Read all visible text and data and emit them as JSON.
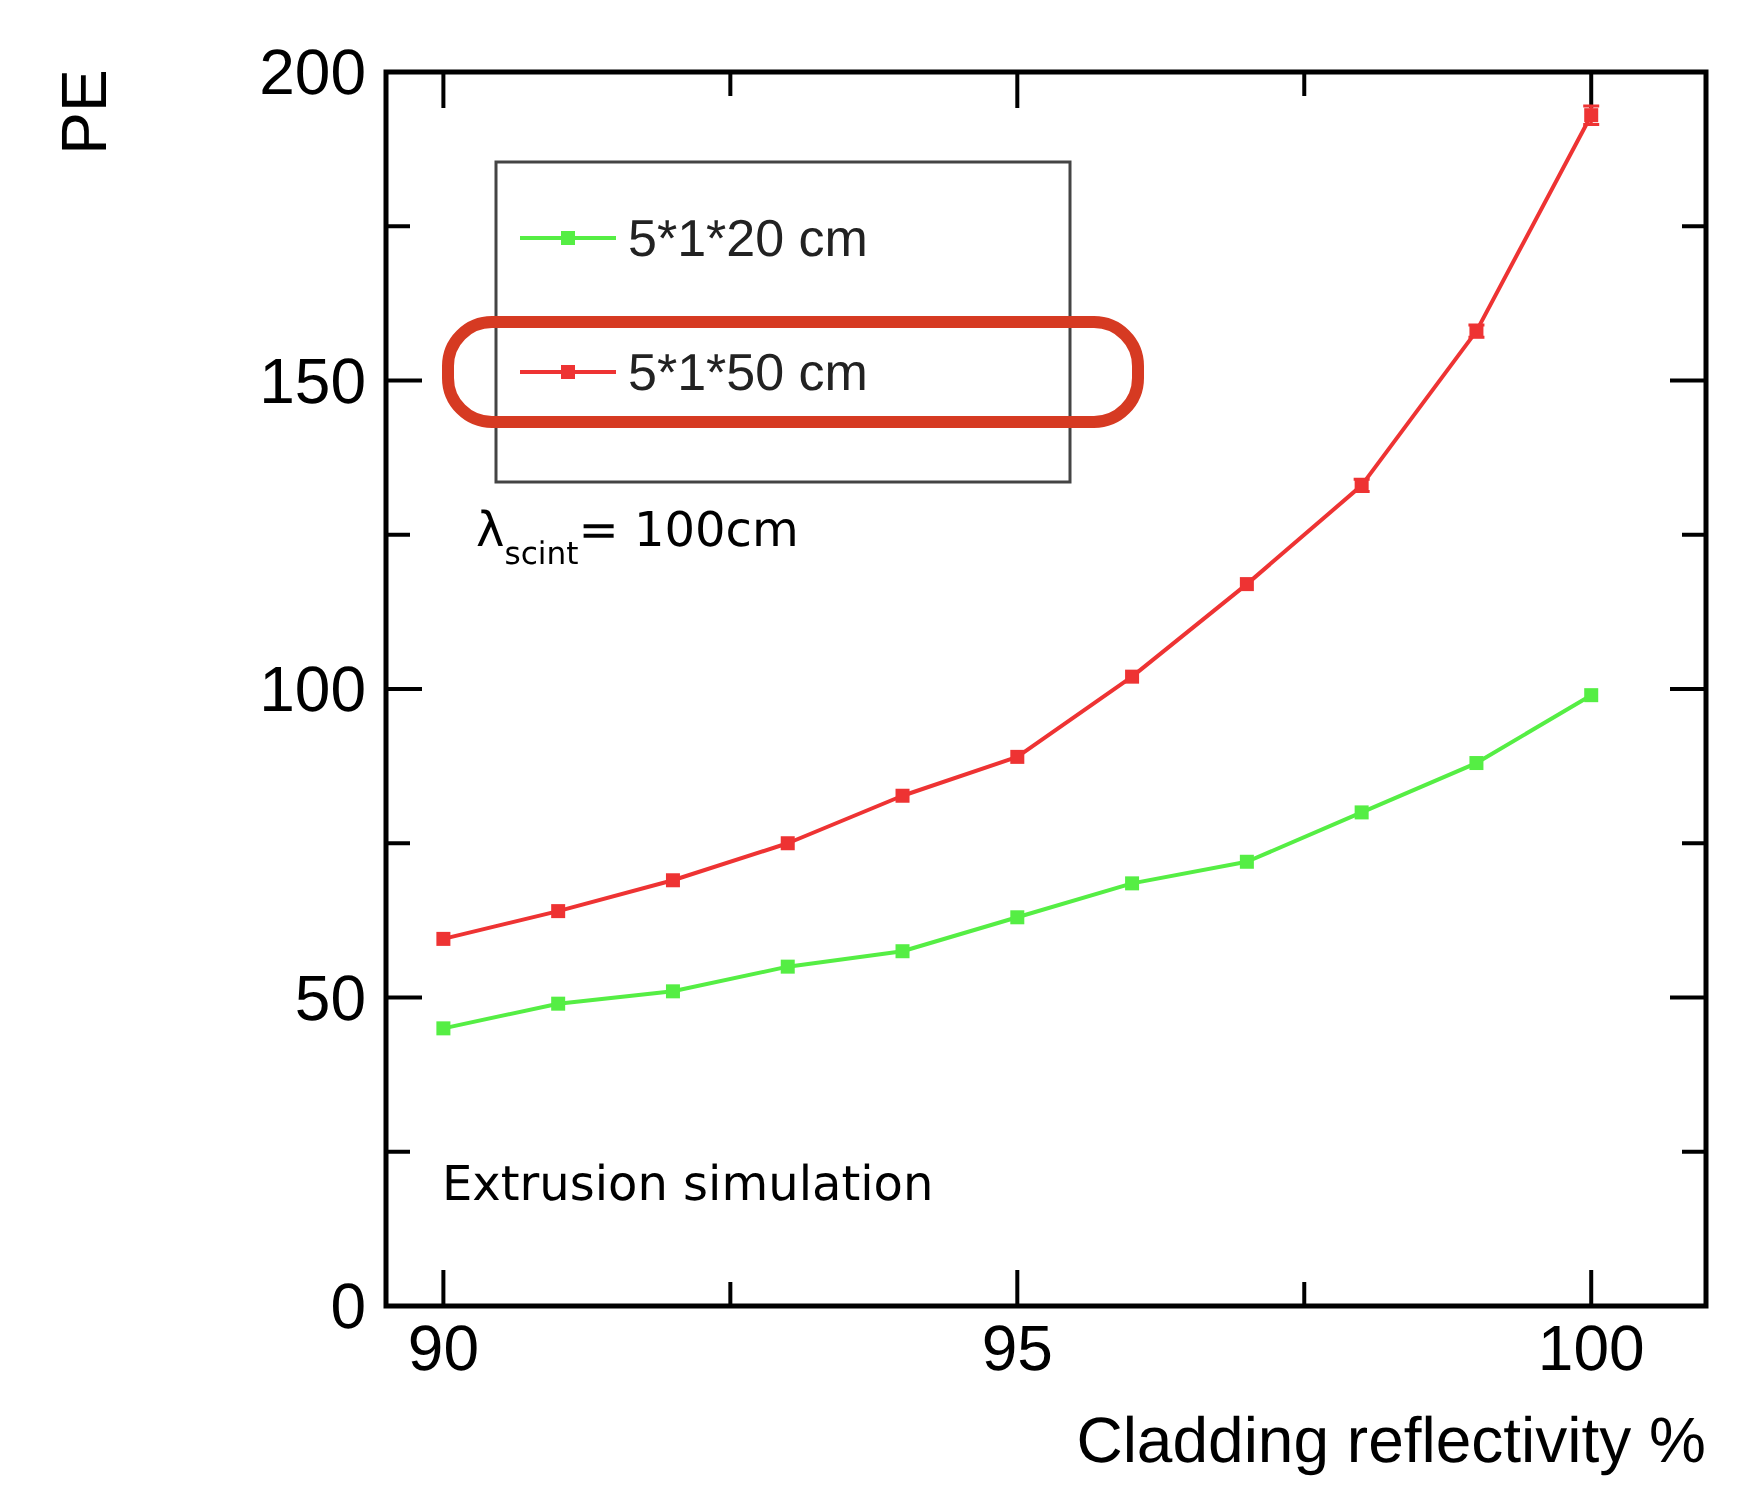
{
  "chart_data": {
    "type": "line",
    "xlabel": "Cladding reflectivity %",
    "ylabel": "PE",
    "x": [
      90,
      91,
      92,
      93,
      94,
      95,
      96,
      97,
      98,
      99,
      100
    ],
    "series": [
      {
        "name": "5*1*20 cm",
        "color": "#55ee44",
        "values": [
          45,
          49,
          51,
          55,
          57.5,
          63,
          68.5,
          72,
          80,
          88,
          99
        ]
      },
      {
        "name": "5*1*50 cm",
        "color": "#ee3333",
        "values": [
          59.5,
          64,
          69,
          75,
          82.7,
          89,
          102,
          117,
          133,
          158,
          193
        ],
        "errors": [
          null,
          null,
          null,
          null,
          null,
          null,
          null,
          null,
          1,
          1,
          1.5
        ]
      }
    ],
    "xlim": [
      89.5,
      101
    ],
    "ylim": [
      0,
      200
    ],
    "xticks": [
      90,
      {
        "value": 92.5,
        "label": null
      },
      95,
      {
        "value": 97.5,
        "label": null
      },
      100
    ],
    "yticks": [
      0,
      {
        "value": 25,
        "label": null
      },
      50,
      {
        "value": 75,
        "label": null
      },
      100,
      {
        "value": 125,
        "label": null
      },
      150,
      {
        "value": 175,
        "label": null
      },
      200
    ],
    "legend": "top left",
    "marker": "square",
    "line_style": "solid",
    "annotations": [
      "λ$_{scint}$= 100cm",
      "Extrusion simulation"
    ]
  }
}
